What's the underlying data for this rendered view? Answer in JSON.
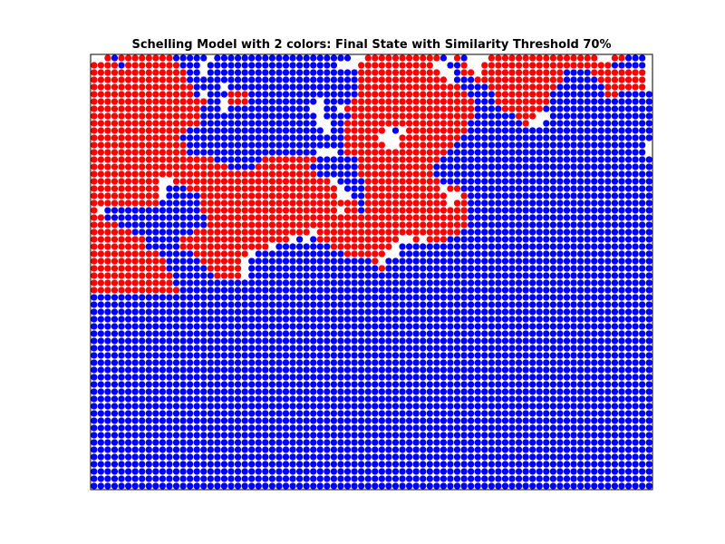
{
  "chart_data": {
    "type": "scatter",
    "title": "Schelling Model with 2 colors: Final State with Similarity Threshold 70%",
    "xlabel": "",
    "ylabel": "",
    "axes_visible": false,
    "grid": false,
    "legend": "none",
    "xlim": [
      0,
      80
    ],
    "ylim": [
      0,
      60
    ],
    "colors": {
      "A": "#ff0000",
      "B": "#0000ff",
      "background": "#ffffff",
      "frame": "#000000"
    },
    "grid_rows": [
      "..ABAAAAAAAABBBBB.BBBBBBBBBBBBBBBBBBBB..AAAAAAAAAAAB.AB...AAAAAAAAAAAAAAAA..AABBB",
      "AAAABAAAAAAAABBB.BBBBBBBBBBBBBBBBBBB...AAAAAAAAAAA..BBA..AAAAAAAAAAAAAAAAAAABBBBB",
      "AAAAAAAAAAAAAABB.BBBBBBBBBBBBBBBBBBBBBBAAAAAAAAAAAA..BAA.AAAAAAAAAAAABBBBAAAAAAAA",
      "AAAAAAAAAAAAAABBBBBBBBBBBBBBBBBBBBBBBBBAAAAAAAAAAAAA.BBBAAAAAAAAAAAAABBBBBAAAAAAA",
      "AAAAAAAAAAAAAAABBBB.BBBBBBBBBBBBBBBBBBBAAAAAAAAAAAAAAABBBBAAAAAAAAAABBBBBBBAAAAAA",
      "AAAAAAAAAAAAAAAB.BBBAAABBBBBBBBBBBBBBBBAAAAAAAAAAAAAAAABBBBAAAAAAAABBBBBBBBAABBBBB",
      "AAAAAAAAAAAAAAAAABB.AAABBBBBBBBBB.BBBBAAAAAAAAAAAAAAAAAABBBAAAAAAAABBBBBBBBBBBBBBB",
      "AAAAAAAAAAAAAAAABBB.BBBBBBBBBBBB..BB.AAAAAAAAAAAAAAAAAAABBBBAAAAAABBBBBBBBBBBBBBBB",
      "AAAAAAAAAAAAAAAABBBBBBBBBBBBBBBBB.BBBBAAAAAAAAAAAAAAAAAABBBBBBAAA..BBBBBBBBBBBBBBB",
      "AAAAAAAAAAAAAAAABBBBBBBBBBBBBBBBB..BBAAAAAAAAAAAAAAAAAABBBBBBBBA..BBBBBBBBBBBBBBBB",
      "AAAAAAAAAAAAAABBBBBBBBBBBBBBBBBBBB.BBAAAAAA.B.AAAAAAAAABBBBBBBBBBBBBBBBBBBBBBBBBBB",
      "AAAAAAAAAAAAABBBBBBBBBBBBBBBBBBBBBBBBAAAAA...AAAAAAAAABBBBBBBBBBBBBBBBBBBBBBBBBBBB",
      "AAAAAAAAAAAAAABBBBBBBBBBBBBBBBBBBBBBBAAAAAA..AAAAAAAABBBBBBBBBBBBBBBBBBBBBBBBBBBB",
      "AAAAAAAAAAAAAABBBBBBBBBBBBBBBBBBB...BAAAAAAAAAAAAAAABBBBBBBBBBBBBBBBBBBBBBBBBBBBB",
      "AAAAAAAAAAAAAAAAAABBBBBBBAAAAAAAABBBBBBAAAAAAAAAAAABBBBBBBBBBBBBBBBBBBBBBBBBBBBBBB",
      "AAAAAAAAAAAAAAAAAAAABBBBAAAAAAAABBBBBBBAAAAAAAAAAABBBBBBBBBBBBBBBBBBBBBBBBBBBBBBBB",
      "AAAAAAAAAAAAAAAAAAAAAAAAAAAAAAAAABBBBBBAAAAAAAAAAABBBBBBBBBBBBBBBBBBBBBBBBBBBBBBBB",
      "AAAAAAAAAA..AAAAAAAAAAAAAAAAAAAAAAA.BBBBAAAAAAAAAAABBBBBBBBBBBBBBBBBBBBBBBBBBBBBBB",
      "AAAAAAAAAA.BBBAAAAAAAAAAAAAAAAAAAAAA.BBBAAAAAAAAAAA.AABBBBBBBBBBBBBBBBBBBBBBBBBBBB",
      "AAAAAAAAAA.BBBBBAAAAAAAAAAAAAAAAAAAA..BBAAAAAAAAAAAA..ABBBBBBBBBBBBBBBBBBBBBBBBBBB",
      "AAAAAAAAAABBBBBBAAAAAAAAAAAAAAAAAAAAAAABAAAAAAAAAAAA.AABBBBBBBBBBBBBBBBBBBBBBBBBBB",
      "A.BBBBBBBBBBBBBBAAAAAAAAAAAAAAAAAAAA.AABAAAAAAAAAAAAAAABBBBBBBBBBBBBBBBBBBBBBBBBBB",
      "AABBBBBBBBBBBBBBBAAAAAAAAAAAAAAAAAAAAAAAAAAAAAAAAAAAAAABBBBBBBBBBBBBBBBBBBBBBBBBBB",
      "AAAABBBBBBBBBBBBBAAAAAAAAAAAAAAAAAAAAAAAAAAAAAAAAAAAAAABBBBBBBBBBBBBBBBBBBBBBBBBBB",
      "AAAAAABBBBBBBBBAAAAAAAAAAAAAAAAA.AAAAAAAAAAAAAAAAAAAAABBBBBBBBBBBBBBBBBBBBBBBBBBBB",
      "AAAAAAAABBBBBAAAAAAAAAAAAAAAA.B.BAAAAAAAAAAAA..A.AAABBBBBBBBBBBBBBBBBBBBBBBBBBBBBB",
      "AAAAAAAABBBBBAAAAAAAAAAAAA.BBBBBBBBAAAAAAAAA.BBBBBBBBBBBBBBBBBBBBBBBBBBBBBBBBBBBBB",
      "AAAAAAAAAABBBBBAAAAAAAA.BBBBBBBBBBBBBAAAAAA..BBBBBBBBBBBBBBBBBBBBBBBBBBBBBBBBBBBBB",
      "AAAAAAAAAAABBBBBAAAAAA.BBBBBBBBBBBBBBBBBBA.BBBBBBBBBBBBBBBBBBBBBBBBBBBBBBBBBBBBBBB",
      "AAAAAAAAAAABBBBBBAAAAA.BBBBBBBBBBBBBBBBBBBABBBBBBBBBBBBBBBBBBBBBBBBBBBBBBBBBBBBBBB",
      "AAAAAAAAAAAABBBBBBAAAA.BBBBBBBBBBBBBBBBBBBBBBBBBBBBBBBBBBBBBBBBBBBBBBBBBBBBBBBBBBB",
      "AAAAAAAAAAAABBBBBBBBBBBBBBBBBBBBBBBBBBBBBBBBBBBBBBBBBBBBBBBBBBBBBBBBBBBBBBBBBBBBBB",
      "AAAAAAAAAAAAABBBBBBBBBBBBBBBBBBBBBBBBBBBBBBBBBBBBBBBBBBBBBBBBBBBBBBBBBBBBBBBBBBBBB",
      "BBBBBBBBBBBBBBBBBBBBBBBBBBBBBBBBBBBBBBBBBBBBBBBBBBBBBBBBBBBBBBBBBBBBBBBBBBBBBBBBBB",
      "BBBBBBBBBBBBBBBBBBBBBBBBBBBBBBBBBBBBBBBBBBBBBBBBBBBBBBBBBBBBBBBBBBBBBBBBBBBBBBBBBB",
      "BBBBBBBBBBBBBBBBBBBBBBBBBBBBBBBBBBBBBBBBBBBBBBBBBBBBBBBBBBBBBBBBBBBBBBBBBBBBBBBBBB",
      "BBBBBBBBBBBBBBBBBBBBBBBBBBBBBBBBBBBBBBBBBBBBBBBBBBBBBBBBBBBBBBBBBBBBBBBBBBBBBBBBBB",
      "BBBBBBBBBBBBBBBBBBBBBBBBBBBBBBBBBBBBBBBBBBBBBBBBBBBBBBBBBBBBBBBBBBBBBBBBBBBBBBBBBB",
      "BBBBBBBBBBBBBBBBBBBBBBBBBBBBBBBBBBBBBBBBBBBBBBBBBBBBBBBBBBBBBBBBBBBBBBBBBBBBBBBBBB",
      "BBBBBBBBBBBBBBBBBBBBBBBBBBBBBBBBBBBBBBBBBBBBBBBBBBBBBBBBBBBBBBBBBBBBBBBBBBBBBBBBBB",
      "BBBBBBBBBBBBBBBBBBBBBBBBBBBBBBBBBBBBBBBBBBBBBBBBBBBBBBBBBBBBBBBBBBBBBBBBBBBBBBBBBB",
      "BBBBBBBBBBBBBBBBBBBBBBBBBBBBBBBBBBBBBBBBBBBBBBBBBBBBBBBBBBBBBBBBBBBBBBBBBBBBBBBBBB",
      "BBBBBBBBBBBBBBBBBBBBBBBBBBBBBBBBBBBBBBBBBBBBBBBBBBBBBBBBBBBBBBBBBBBBBBBBBBBBBBBBBB",
      "BBBBBBBBBBBBBBBBBBBBBBBBBBBBBBBBBBBBBBBBBBBBBBBBBBBBBBBBBBBBBBBBBBBBBBBBBBBBBBBBBB",
      "BBBBBBBBBBBBBBBBBBBBBBBBBBBBBBBBBBBBBBBBBBBBBBBBBBBBBBBBBBBBBBBBBBBBBBBBBBBBBBBBBB",
      "BBBBBBBBBBBBBBBBBBBBBBBBBBBBBBBBBBBBBBBBBBBBBBBBBBBBBBBBBBBBBBBBBBBBBBBBBBBBBBBBBB",
      "BBBBBBBBBBBBBBBBBBBBBBBBBBBBBBBBBBBBBBBBBBBBBBBBBBBBBBBBBBBBBBBBBBBBBBBBBBBBBBBBBB",
      "BBBBBBBBBBBBBBBBBBBBBBBBBBBBBBBBBBBBBBBBBBBBBBBBBBBBBBBBBBBBBBBBBBBBBBBBBBBBBBBBBB",
      "BBBBBBBBBBBBBBBBBBBBBBBBBBBBBBBBBBBBBBBBBBBBBBBBBBBBBBBBBBBBBBBBBBBBBBBBBBBBBBBBBB",
      "BBBBBBBBBBBBBBBBBBBBBBBBBBBBBBBBBBBBBBBBBBBBBBBBBBBBBBBBBBBBBBBBBBBBBBBBBBBBBBBBBB",
      "BBBBBBBBBBBBBBBBBBBBBBBBBBBBBBBBBBBBBBBBBBBBBBBBBBBBBBBBBBBBBBBBBBBBBBBBBBBBBBBBBB",
      "BBBBBBBBBBBBBBBBBBBBBBBBBBBBBBBBBBBBBBBBBBBBBBBBBBBBBBBBBBBBBBBBBBBBBBBBBBBBBBBBBB",
      "BBBBBBBBBBBBBBBBBBBBBBBBBBBBBBBBBBBBBBBBBBBBBBBBBBBBBBBBBBBBBBBBBBBBBBBBBBBBBBBBBB",
      "BBBBBBBBBBBBBBBBBBBBBBBBBBBBBBBBBBBBBBBBBBBBBBBBBBBBBBBBBBBBBBBBBBBBBBBBBBBBBBBBBB",
      "BBBBBBBBBBBBBBBBBBBBBBBBBBBBBBBBBBBBBBBBBBBBBBBBBBBBBBBBBBBBBBBBBBBBBBBBBBBBBBBBBB",
      "BBBBBBBBBBBBBBBBBBBBBBBBBBBBBBBBBBBBBBBBBBBBBBBBBBBBBBBBBBBBBBBBBBBBBBBBBBBBBBBBBB",
      "BBBBBBBBBBBBBBBBBBBBBBBBBBBBBBBBBBBBBBBBBBBBBBBBBBBBBBBBBBBBBBBBBBBBBBBBBBBBBBBBBB",
      "BBBBBBBBBBBBBBBBBBBBBBBBBBBBBBBBBBBBBBBBBBBBBBBBBBBBBBBBBBBBBBBBBBBBBBBBBBBBBBBBBB",
      "BBBBBBBBBBBBBBBBBBBBBBBBBBBBBBBBBBBBBBBBBBBBBBBBBBBBBBBBBBBBBBBBBBBBBBBBBBBBBBBBBB",
      "BBBBBBBBBBBBBBBBBBBBBBBBBBBBBBBBBBBBBBBBBBBBBBBBBBBBBBBBBBBBBBBBBBBBBBBBBBBBBBBBBB"
    ]
  }
}
